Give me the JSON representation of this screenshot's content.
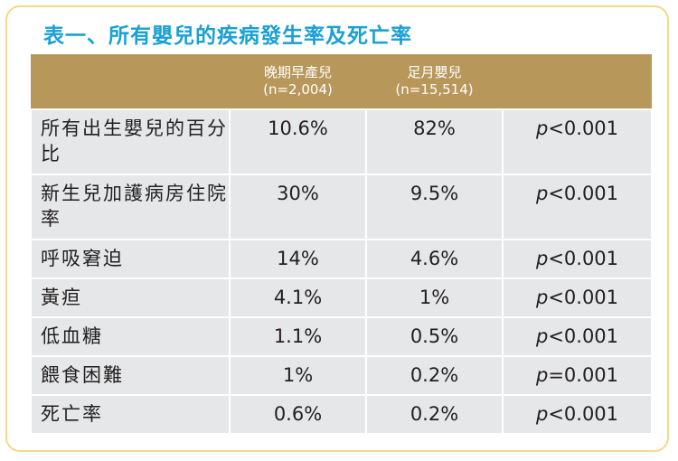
{
  "title": "表一、所有嬰兒的疾病發生率及死亡率",
  "columns": [
    {
      "name": "晚期早產兒",
      "sub": "(n=2,004)"
    },
    {
      "name": "足月嬰兒",
      "sub": "(n=15,514)"
    }
  ],
  "rows": [
    {
      "label": "所有出生嬰兒的百分比",
      "late_preterm": "10.6%",
      "full_term": "82%",
      "p_var": "p",
      "p_val": "<0.001"
    },
    {
      "label": "新生兒加護病房住院率",
      "late_preterm": "30%",
      "full_term": "9.5%",
      "p_var": "p",
      "p_val": "<0.001"
    },
    {
      "label": "呼吸窘迫",
      "late_preterm": "14%",
      "full_term": "4.6%",
      "p_var": "p",
      "p_val": "<0.001"
    },
    {
      "label": "黃疸",
      "late_preterm": "4.1%",
      "full_term": "1%",
      "p_var": "p",
      "p_val": "<0.001"
    },
    {
      "label": "低血糖",
      "late_preterm": "1.1%",
      "full_term": "0.5%",
      "p_var": "p",
      "p_val": "<0.001"
    },
    {
      "label": "餵食困難",
      "late_preterm": "1%",
      "full_term": "0.2%",
      "p_var": "p",
      "p_val": "=0.001"
    },
    {
      "label": "死亡率",
      "late_preterm": "0.6%",
      "full_term": "0.2%",
      "p_var": "p",
      "p_val": "<0.001"
    }
  ],
  "colors": {
    "title": "#1aa0d2",
    "header_bg": "#b8975b",
    "cell_bg": "#e6e7e8",
    "frame": "#f3d98a"
  }
}
